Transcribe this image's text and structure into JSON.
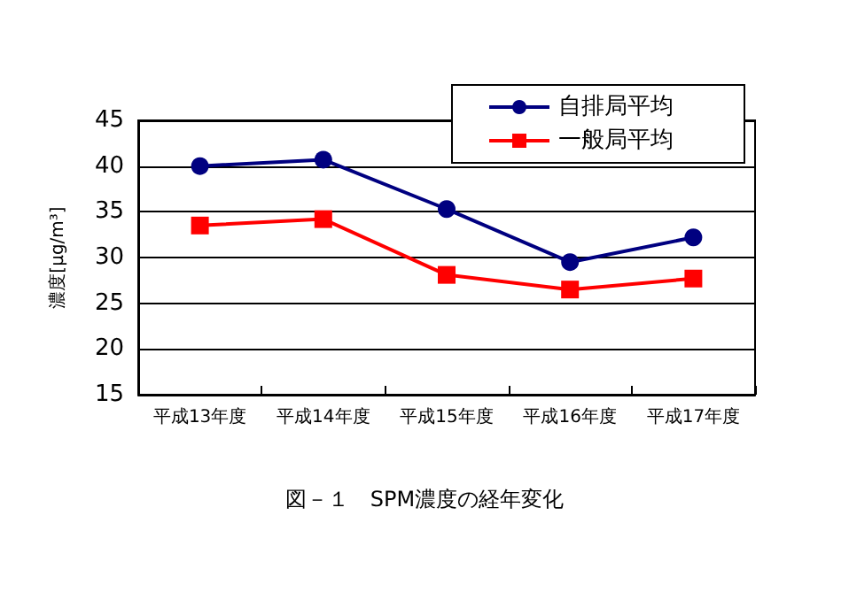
{
  "chart_data": {
    "type": "line",
    "title": "図－１　SPM濃度の経年変化",
    "ylabel": "濃度[μg/m³]",
    "categories": [
      "平成13年度",
      "平成14年度",
      "平成15年度",
      "平成16年度",
      "平成17年度"
    ],
    "series": [
      {
        "name": "自排局平均",
        "color": "#000080",
        "marker": "circle",
        "values": [
          40.0,
          40.7,
          35.3,
          29.5,
          32.2
        ]
      },
      {
        "name": "一般局平均",
        "color": "#ff0000",
        "marker": "square",
        "values": [
          33.5,
          34.2,
          28.1,
          26.5,
          27.7
        ]
      }
    ],
    "ylim": [
      15,
      45
    ],
    "yticks": [
      15,
      20,
      25,
      30,
      35,
      40,
      45
    ],
    "grid": "y",
    "legend": "top right"
  }
}
